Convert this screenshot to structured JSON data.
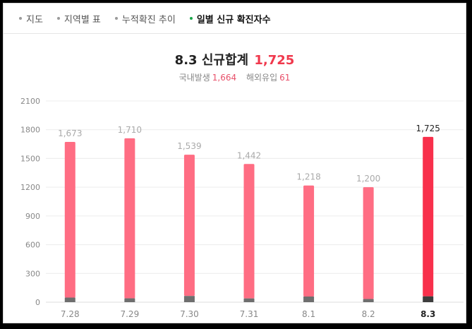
{
  "tabs": [
    {
      "label": "지도",
      "active": false
    },
    {
      "label": "지역별 표",
      "active": false
    },
    {
      "label": "누적확진 추이",
      "active": false
    },
    {
      "label": "일별 신규 확진자수",
      "active": true
    }
  ],
  "summary": {
    "date": "8.3",
    "title_label": "신규합계",
    "total": "1,725",
    "domestic_label": "국내발생",
    "domestic_value": "1,664",
    "overseas_label": "해외유입",
    "overseas_value": "61"
  },
  "colors": {
    "bar": "#ff6d83",
    "bar_highlight": "#f8304b",
    "overseas_segment": "#6e6e6e",
    "overseas_segment_highlight": "#3c3c3c",
    "grid": "#ececec",
    "tick_text": "#888888",
    "value_label": "#aaaaaa",
    "value_label_highlight": "#222222"
  },
  "chart_data": {
    "type": "bar",
    "categories": [
      "7.28",
      "7.29",
      "7.30",
      "7.31",
      "8.1",
      "8.2",
      "8.3"
    ],
    "value_labels": [
      "1,673",
      "1,710",
      "1,539",
      "1,442",
      "1,218",
      "1,200",
      "1,725"
    ],
    "series": [
      {
        "values": [
          1625,
          1670,
          1474,
          1403,
          1159,
          1167,
          1664
        ]
      },
      {
        "values": [
          48,
          40,
          65,
          39,
          59,
          33,
          61
        ]
      }
    ],
    "stacked": true,
    "totals": [
      1673,
      1710,
      1539,
      1442,
      1218,
      1200,
      1725
    ],
    "highlight_index": 6,
    "yticks": [
      0,
      300,
      600,
      900,
      1200,
      1500,
      1800,
      2100
    ],
    "ylim": [
      0,
      2100
    ],
    "grid": true,
    "title": "",
    "xlabel": "",
    "ylabel": ""
  }
}
